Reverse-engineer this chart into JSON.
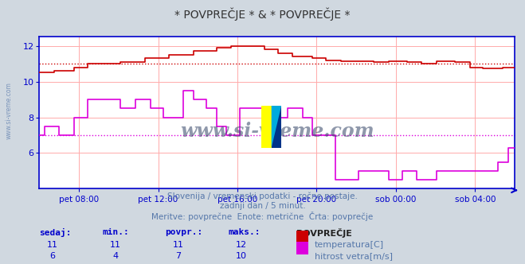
{
  "title": "* POVPREČJE * & * POVPREČJE *",
  "bg_color": "#d0d8e0",
  "plot_bg_color": "#ffffff",
  "grid_color": "#ffaaaa",
  "axis_color": "#0000cc",
  "xlabel_color": "#5577aa",
  "text_color": "#5577aa",
  "temp_color": "#cc0000",
  "wind_color": "#dd00dd",
  "temp_avg_line": 11.0,
  "wind_avg_line": 7.0,
  "ylim": [
    4.0,
    12.5
  ],
  "yticks": [
    6,
    8,
    10,
    12
  ],
  "subtitle1": "Slovenija / vremenski podatki - ročne postaje.",
  "subtitle2": "zadnji dan / 5 minut.",
  "subtitle3": "Meritve: povprečne  Enote: metrične  Črta: povprečje",
  "legend_title": "POVPREČJE",
  "legend_items": [
    {
      "label": "temperatura[C]",
      "color": "#cc0000"
    },
    {
      "label": "hitrost vetra[m/s]",
      "color": "#dd00dd"
    }
  ],
  "table_headers": [
    "sedaj:",
    "min.:",
    "povpr.:",
    "maks.:"
  ],
  "table_row1": [
    11,
    11,
    11,
    12
  ],
  "table_row2": [
    6,
    4,
    7,
    10
  ],
  "xtick_labels": [
    "pet 08:00",
    "pet 12:00",
    "pet 16:00",
    "pet 20:00",
    "sob 00:00",
    "sob 04:00"
  ],
  "xtick_positions": [
    0.083,
    0.25,
    0.417,
    0.583,
    0.75,
    0.917
  ],
  "watermark": "www.si-vreme.com",
  "watermark_color": "#334466"
}
